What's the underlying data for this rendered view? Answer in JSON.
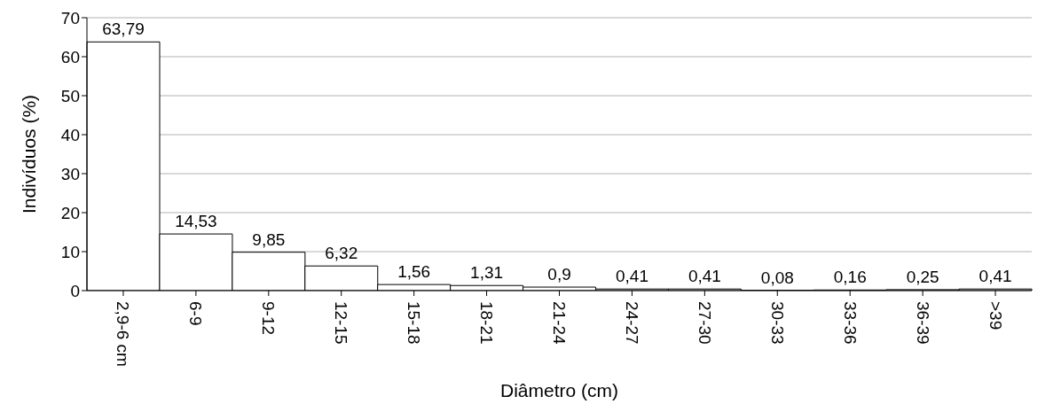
{
  "chart_data": {
    "type": "bar",
    "xlabel": "Diâmetro (cm)",
    "ylabel": "Indivíduos (%)",
    "categories": [
      "2,9-6 cm",
      "6-9",
      "9-12",
      "12-15",
      "15-18",
      "18-21",
      "21-24",
      "24-27",
      "27-30",
      "30-33",
      "33-36",
      "36-39",
      ">39"
    ],
    "values": [
      63.79,
      14.53,
      9.85,
      6.32,
      1.56,
      1.31,
      0.9,
      0.41,
      0.41,
      0.08,
      0.16,
      0.25,
      0.41
    ],
    "value_labels": [
      "63,79",
      "14,53",
      "9,85",
      "6,32",
      "1,56",
      "1,31",
      "0,9",
      "0,41",
      "0,41",
      "0,08",
      "0,16",
      "0,25",
      "0,41"
    ],
    "color": "#ffffff",
    "ylim": [
      0,
      70
    ],
    "yticks": [
      0,
      10,
      20,
      30,
      40,
      50,
      60,
      70
    ],
    "grid": "y"
  }
}
